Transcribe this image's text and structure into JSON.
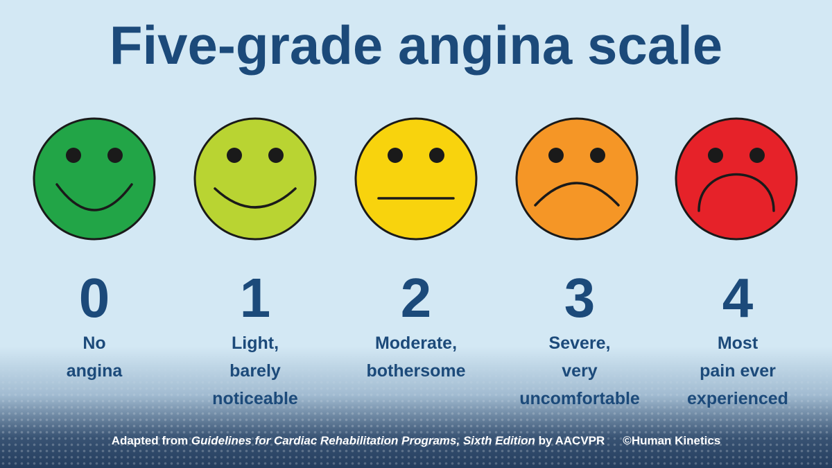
{
  "title": "Five-grade angina scale",
  "faces": [
    {
      "color": "#22a547",
      "mood": "big-smile"
    },
    {
      "color": "#b9d432",
      "mood": "smile"
    },
    {
      "color": "#f8d30d",
      "mood": "neutral"
    },
    {
      "color": "#f59626",
      "mood": "frown"
    },
    {
      "color": "#e62229",
      "mood": "big-frown"
    }
  ],
  "grades": [
    {
      "number": "0",
      "description": "No\nangina"
    },
    {
      "number": "1",
      "description": "Light,\nbarely\nnoticeable"
    },
    {
      "number": "2",
      "description": "Moderate,\nbothersome"
    },
    {
      "number": "3",
      "description": "Severe,\nvery\nuncomfortable"
    },
    {
      "number": "4",
      "description": "Most\npain ever\nexperienced"
    }
  ],
  "footer": {
    "prefix": "Adapted from ",
    "source_title": "Guidelines for Cardiac Rehabilitation Programs, Sixth Edition",
    "suffix": " by AACVPR",
    "copyright": "©Human Kinetics"
  },
  "colors": {
    "title": "#1c4a7a",
    "background": "#d3e8f4",
    "face_outline": "#1a1a1a"
  }
}
